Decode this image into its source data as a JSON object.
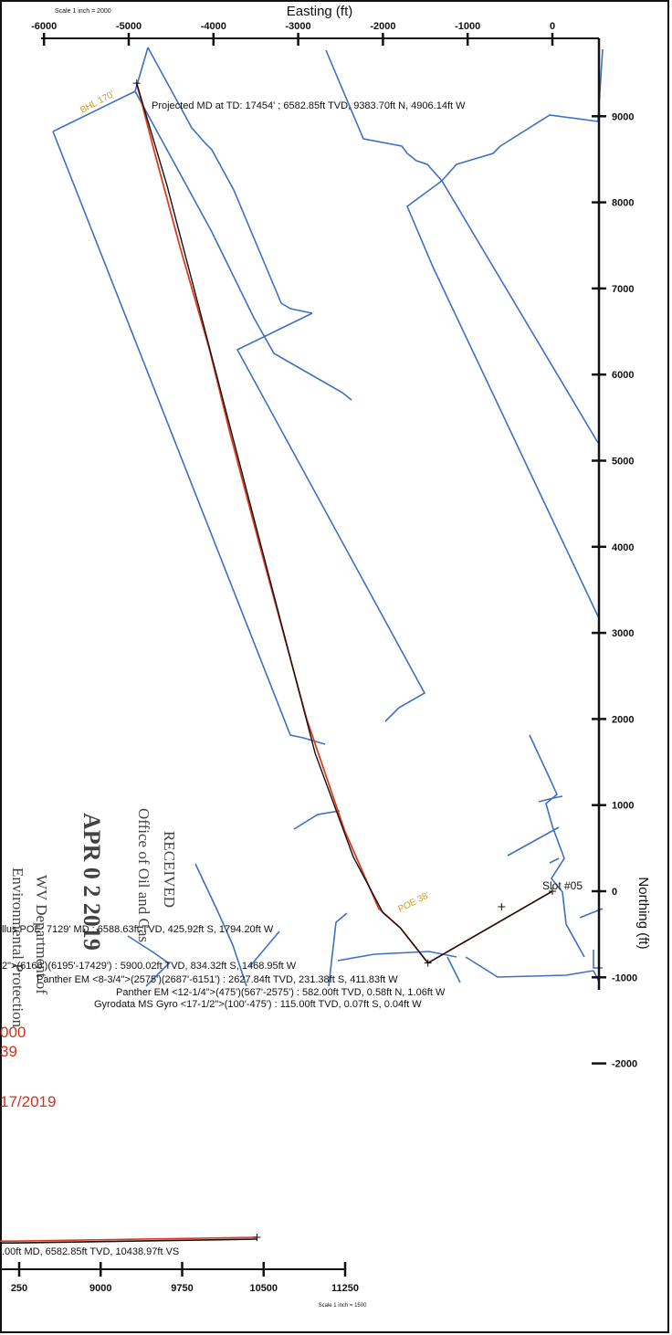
{
  "chart_data": {
    "type": "line",
    "plan_view": {
      "scale_note": "Scale 1 inch = 2000",
      "xlabel": "Easting (ft)",
      "ylabel": "Northing (ft)",
      "x_ticks": [
        "-6000",
        "-5000",
        "-4000",
        "-3000",
        "-2000",
        "-1000",
        "0"
      ],
      "y_ticks": [
        "9000",
        "8000",
        "7000",
        "6000",
        "5000",
        "4000",
        "3000",
        "2000",
        "1000",
        "0",
        "-1000",
        "-2000"
      ],
      "xlim": [
        -6000,
        600
      ],
      "ylim": [
        -2000,
        9700
      ],
      "series": [
        {
          "color": "#e03a1e",
          "points": [
            [
              -4906,
              9384
            ],
            [
              -4700,
              8600
            ],
            [
              -4400,
              7500
            ],
            [
              -4050,
              6300
            ],
            [
              -3800,
              5300
            ],
            [
              -3450,
              4000
            ],
            [
              -2900,
              2000
            ],
            [
              -2450,
              700
            ],
            [
              -2050,
              -200
            ],
            [
              -1794,
              -426
            ],
            [
              -1469,
              -834
            ],
            [
              0,
              0
            ]
          ]
        },
        {
          "color": "#111111",
          "points": [
            [
              -4906,
              9384
            ],
            [
              -4550,
              8200
            ],
            [
              -4150,
              6700
            ],
            [
              -3700,
              5000
            ],
            [
              -3250,
              3300
            ],
            [
              -2800,
              1600
            ],
            [
              -2350,
              400
            ],
            [
              -2000,
              -250
            ],
            [
              -1794,
              -426
            ],
            [
              -1469,
              -834
            ],
            [
              0,
              0
            ]
          ]
        }
      ],
      "annotations": [
        "Projected MD at TD: 17454' ; 6582.85ft TVD, 9383.70ft N, 4906.14ft W",
        "Slot #05",
        "BHL 170'",
        "POE 38'",
        "llus POE: 7129' MD : 6588.63ft TVD, 425.92ft S, 1794.20ft W",
        "2\">(6166')(6195'-17429') : 5900.02ft TVD, 834.32ft S, 1468.95ft W",
        "Panther EM <8-3/4\">(2575')(2687'-6151') : 2627.84ft TVD, 231.38ft S, 411.83ft W",
        "Panther EM <12-1/4\">(475')(567'-2575') : 582.00ft TVD, 0.58ft N, 1.06ft W",
        "Gyrodata MS Gyro <17-1/2\">(100'-475') : 115.00ft TVD, 0.07ft S, 0.04ft W"
      ]
    },
    "vertical_section": {
      "scale_note": "Scale 1 inch = 1500",
      "x_ticks": [
        "250",
        "9000",
        "9750",
        "10500",
        "11250"
      ],
      "label": ".00ft MD, 6582.85ft TVD, 10438.97ft VS",
      "series": [
        {
          "color": "#e03a1e",
          "x": [
            8200,
            10439
          ],
          "y": [
            6590,
            6583
          ]
        },
        {
          "color": "#111111",
          "x": [
            8200,
            10439
          ],
          "y": [
            6590,
            6583
          ]
        }
      ]
    },
    "side_text": {
      "value_a": "000",
      "value_b": "39",
      "date": "17/2019",
      "colors": {
        "accent": "#d8301a"
      }
    },
    "stamp": {
      "line1": "RECEIVED",
      "line2": "Office of Oil and Gas",
      "line3": "APR 0 2 2019",
      "line4": "WV Department of",
      "line5": "Environmental Protection"
    },
    "lease_lines_color": "#3f6fc1"
  }
}
